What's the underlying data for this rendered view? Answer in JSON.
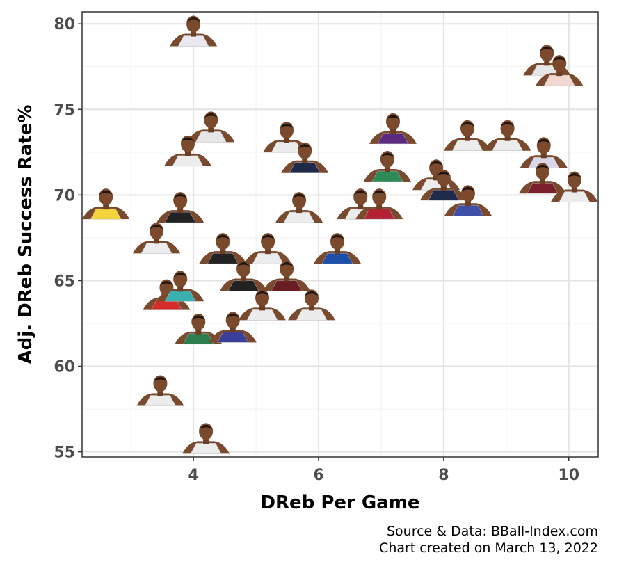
{
  "chart_data": {
    "type": "scatter",
    "title": "",
    "xlabel": "DReb Per Game",
    "ylabel": "Adj. DReb Success Rate%",
    "xlim": [
      2.22,
      10.47
    ],
    "ylim": [
      54.7,
      80.7
    ],
    "xticks": [
      4,
      6,
      8,
      10
    ],
    "yticks": [
      55,
      60,
      65,
      70,
      75,
      80
    ],
    "grid": true,
    "marker": "player headshot",
    "points": [
      {
        "x": 4.0,
        "y": 79.5,
        "color": "#e8e8ee"
      },
      {
        "x": 9.65,
        "y": 77.8,
        "color": "#e6e6e6"
      },
      {
        "x": 9.85,
        "y": 77.2,
        "color": "#f2d7d0"
      },
      {
        "x": 4.28,
        "y": 73.9,
        "color": "#e6e6e6"
      },
      {
        "x": 5.49,
        "y": 73.3,
        "color": "#ececec"
      },
      {
        "x": 7.19,
        "y": 73.8,
        "color": "#5b2b82"
      },
      {
        "x": 8.38,
        "y": 73.4,
        "color": "#ececec"
      },
      {
        "x": 9.02,
        "y": 73.4,
        "color": "#ececec"
      },
      {
        "x": 9.6,
        "y": 72.4,
        "color": "#d8d8e8"
      },
      {
        "x": 3.91,
        "y": 72.5,
        "color": "#ececec"
      },
      {
        "x": 5.78,
        "y": 72.1,
        "color": "#1d2a4a"
      },
      {
        "x": 7.1,
        "y": 71.6,
        "color": "#2e8b57"
      },
      {
        "x": 7.88,
        "y": 71.1,
        "color": "#ececec"
      },
      {
        "x": 8.0,
        "y": 70.5,
        "color": "#1d2a4a"
      },
      {
        "x": 9.58,
        "y": 70.9,
        "color": "#7a1f2b"
      },
      {
        "x": 10.09,
        "y": 70.4,
        "color": "#ececec"
      },
      {
        "x": 2.6,
        "y": 69.4,
        "color": "#f5d33a"
      },
      {
        "x": 3.79,
        "y": 69.2,
        "color": "#222222"
      },
      {
        "x": 5.69,
        "y": 69.2,
        "color": "#ececec"
      },
      {
        "x": 6.67,
        "y": 69.4,
        "color": "#ececec"
      },
      {
        "x": 6.97,
        "y": 69.4,
        "color": "#b22234"
      },
      {
        "x": 8.39,
        "y": 69.6,
        "color": "#3e4fa8"
      },
      {
        "x": 3.41,
        "y": 67.4,
        "color": "#ececec"
      },
      {
        "x": 4.47,
        "y": 66.8,
        "color": "#222222"
      },
      {
        "x": 5.19,
        "y": 66.8,
        "color": "#ececec"
      },
      {
        "x": 6.3,
        "y": 66.8,
        "color": "#1d4fa8"
      },
      {
        "x": 4.8,
        "y": 65.2,
        "color": "#222222"
      },
      {
        "x": 5.49,
        "y": 65.2,
        "color": "#6b1d24"
      },
      {
        "x": 3.57,
        "y": 64.1,
        "color": "#d62b2b"
      },
      {
        "x": 3.79,
        "y": 64.6,
        "color": "#3ab0b0"
      },
      {
        "x": 5.1,
        "y": 63.5,
        "color": "#ececec"
      },
      {
        "x": 5.89,
        "y": 63.5,
        "color": "#ececec"
      },
      {
        "x": 4.08,
        "y": 62.1,
        "color": "#2e7d4f"
      },
      {
        "x": 4.63,
        "y": 62.2,
        "color": "#3b3f9a"
      },
      {
        "x": 3.47,
        "y": 58.5,
        "color": "#ececec"
      },
      {
        "x": 4.2,
        "y": 55.7,
        "color": "#ececec"
      }
    ]
  },
  "caption": {
    "line1": "Source & Data: BBall-Index.com",
    "line2": "Chart created on March 13, 2022"
  }
}
